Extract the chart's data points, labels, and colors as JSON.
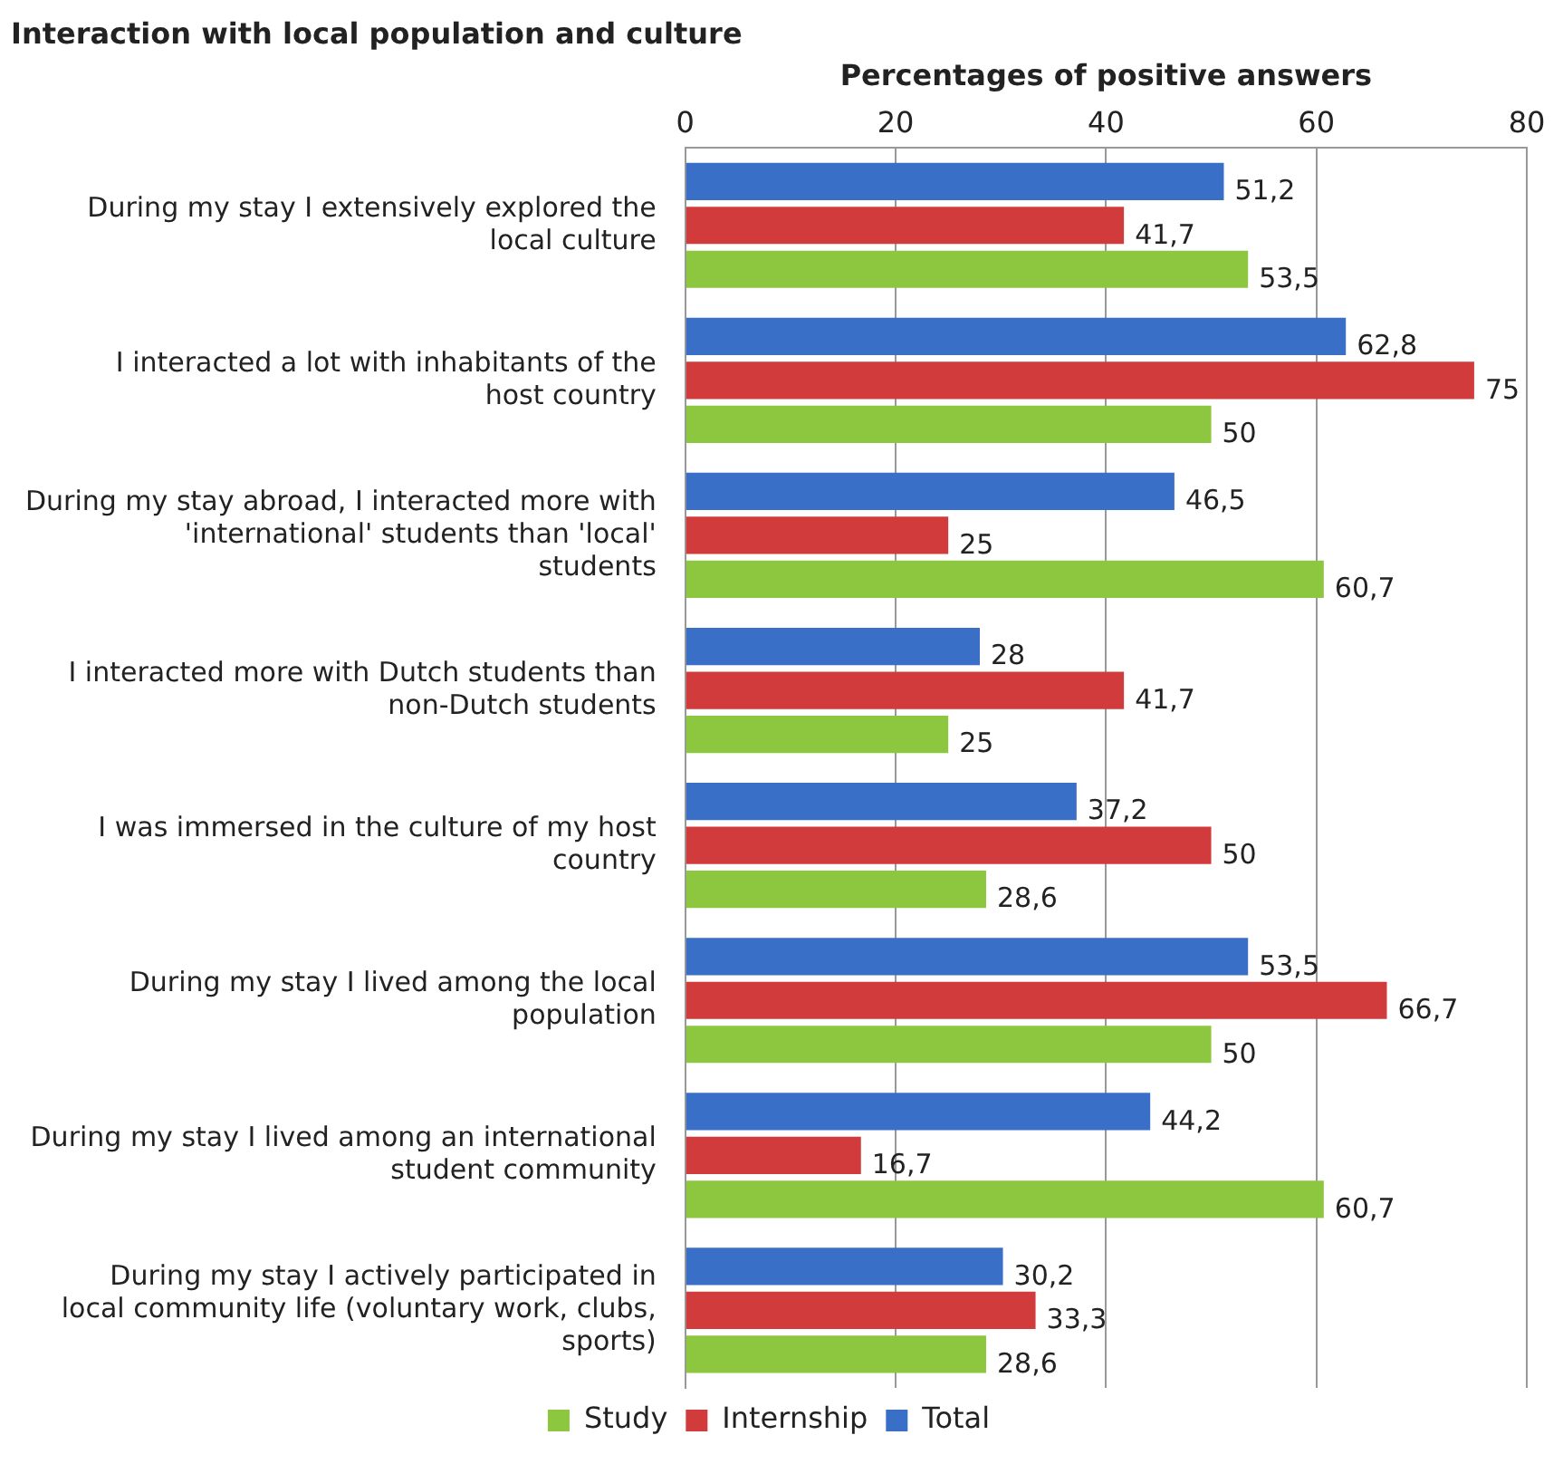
{
  "chart_data": {
    "type": "bar",
    "orientation": "horizontal",
    "title": "Interaction with local population and culture",
    "xlabel": "Percentages of positive answers",
    "categories": [
      "During my stay I extensively explored the local culture",
      "I interacted a lot with inhabitants of the host country",
      "During my stay abroad, I interacted more with 'international' students than 'local' students",
      "I interacted more with Dutch students than non-Dutch students",
      "I was immersed in the culture of my host country",
      "During my stay I lived among the local population",
      "During my stay I lived among an international student community",
      "During my stay I actively participated in local community life (voluntary work, clubs, sports)"
    ],
    "series": [
      {
        "name": "Total",
        "color": "#3a6fc8",
        "values": [
          51.2,
          62.8,
          46.5,
          28,
          37.2,
          53.5,
          44.2,
          30.2
        ],
        "value_labels": [
          "51,2",
          "62,8",
          "46,5",
          "28",
          "37,2",
          "53,5",
          "44,2",
          "30,2"
        ]
      },
      {
        "name": "Internship",
        "color": "#d23b3b",
        "values": [
          41.7,
          75,
          25,
          41.7,
          50,
          66.7,
          16.7,
          33.3
        ],
        "value_labels": [
          "41,7",
          "75",
          "25",
          "41,7",
          "50",
          "66,7",
          "16,7",
          "33,3"
        ]
      },
      {
        "name": "Study",
        "color": "#8dc63f",
        "values": [
          53.5,
          50,
          60.7,
          25,
          28.6,
          50,
          60.7,
          28.6
        ],
        "value_labels": [
          "53,5",
          "50",
          "60,7",
          "25",
          "28,6",
          "50",
          "60,7",
          "28,6"
        ]
      }
    ],
    "xlim": [
      0,
      80
    ],
    "xticks": [
      0,
      20,
      40,
      60,
      80
    ],
    "grid": "x",
    "legend": "bottom"
  }
}
